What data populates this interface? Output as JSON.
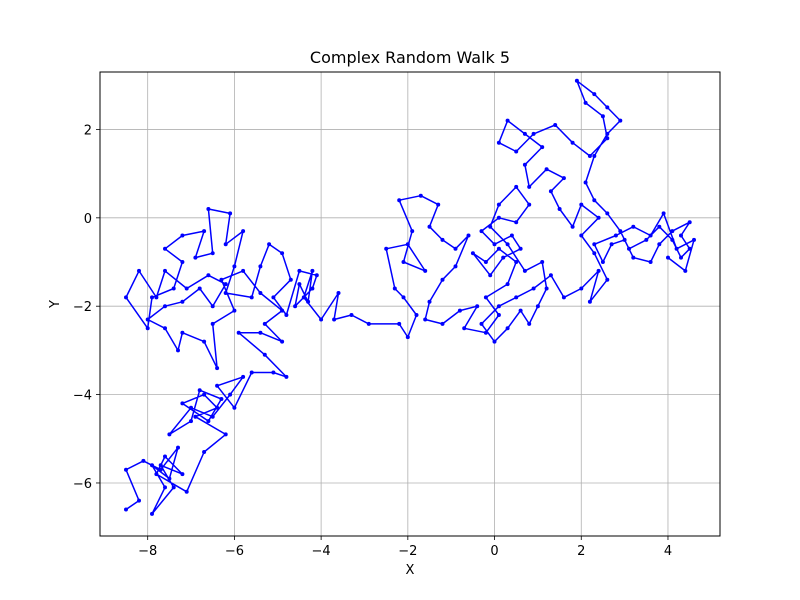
{
  "chart_data": {
    "type": "line",
    "title": "Complex Random Walk 5",
    "xlabel": "X",
    "ylabel": "Y",
    "xlim": [
      -9.1,
      5.2
    ],
    "ylim": [
      -7.2,
      3.3
    ],
    "xticks": [
      -8,
      -6,
      -4,
      -2,
      0,
      2,
      4
    ],
    "yticks": [
      -6,
      -4,
      -2,
      0,
      2
    ],
    "grid": true,
    "series": [
      {
        "color": "#0000ff",
        "marker": "circle",
        "points": [
          [
            -8.5,
            -6.6
          ],
          [
            -8.2,
            -6.4
          ],
          [
            -8.5,
            -5.7
          ],
          [
            -8.1,
            -5.5
          ],
          [
            -7.7,
            -5.7
          ],
          [
            -7.3,
            -5.2
          ],
          [
            -7.5,
            -5.9
          ],
          [
            -7.9,
            -5.6
          ],
          [
            -7.6,
            -6.1
          ],
          [
            -7.9,
            -6.7
          ],
          [
            -7.4,
            -6.1
          ],
          [
            -7.7,
            -5.6
          ],
          [
            -7.2,
            -5.8
          ],
          [
            -7.6,
            -5.4
          ],
          [
            -7.8,
            -5.8
          ],
          [
            -7.1,
            -6.2
          ],
          [
            -6.7,
            -5.3
          ],
          [
            -6.2,
            -4.9
          ],
          [
            -6.9,
            -4.5
          ],
          [
            -6.4,
            -4.3
          ],
          [
            -6.7,
            -4.0
          ],
          [
            -7.2,
            -4.2
          ],
          [
            -6.6,
            -4.6
          ],
          [
            -6.3,
            -4.1
          ],
          [
            -6.8,
            -3.9
          ],
          [
            -7.0,
            -4.6
          ],
          [
            -7.5,
            -4.9
          ],
          [
            -7.0,
            -4.3
          ],
          [
            -6.5,
            -4.5
          ],
          [
            -6.1,
            -4.0
          ],
          [
            -5.8,
            -3.6
          ],
          [
            -6.4,
            -3.8
          ],
          [
            -6.0,
            -4.3
          ],
          [
            -5.6,
            -3.5
          ],
          [
            -5.1,
            -3.5
          ],
          [
            -4.8,
            -3.6
          ],
          [
            -5.3,
            -3.1
          ],
          [
            -5.9,
            -2.6
          ],
          [
            -5.4,
            -2.6
          ],
          [
            -4.9,
            -2.8
          ],
          [
            -5.3,
            -2.4
          ],
          [
            -4.9,
            -2.1
          ],
          [
            -5.4,
            -1.7
          ],
          [
            -5.8,
            -1.2
          ],
          [
            -6.3,
            -1.4
          ],
          [
            -6.0,
            -2.1
          ],
          [
            -6.5,
            -2.4
          ],
          [
            -6.4,
            -3.4
          ],
          [
            -6.7,
            -2.8
          ],
          [
            -7.2,
            -2.6
          ],
          [
            -7.3,
            -3.0
          ],
          [
            -7.6,
            -2.5
          ],
          [
            -8.0,
            -2.3
          ],
          [
            -7.6,
            -2.0
          ],
          [
            -7.2,
            -1.9
          ],
          [
            -6.8,
            -1.6
          ],
          [
            -6.5,
            -2.0
          ],
          [
            -6.2,
            -1.5
          ],
          [
            -6.6,
            -1.3
          ],
          [
            -7.1,
            -1.6
          ],
          [
            -7.6,
            -1.2
          ],
          [
            -7.8,
            -1.8
          ],
          [
            -8.2,
            -1.2
          ],
          [
            -8.5,
            -1.8
          ],
          [
            -8.0,
            -2.5
          ],
          [
            -7.9,
            -1.8
          ],
          [
            -7.4,
            -1.6
          ],
          [
            -7.2,
            -1.0
          ],
          [
            -7.6,
            -0.7
          ],
          [
            -7.2,
            -0.4
          ],
          [
            -6.7,
            -0.3
          ],
          [
            -6.9,
            -0.9
          ],
          [
            -6.5,
            -0.8
          ],
          [
            -6.6,
            0.2
          ],
          [
            -6.1,
            0.1
          ],
          [
            -6.2,
            -0.6
          ],
          [
            -5.8,
            -0.3
          ],
          [
            -6.0,
            -1.1
          ],
          [
            -6.2,
            -1.7
          ],
          [
            -5.6,
            -1.8
          ],
          [
            -5.4,
            -1.1
          ],
          [
            -5.2,
            -0.6
          ],
          [
            -4.9,
            -0.8
          ],
          [
            -4.7,
            -1.4
          ],
          [
            -5.1,
            -1.8
          ],
          [
            -4.8,
            -2.2
          ],
          [
            -4.5,
            -1.2
          ],
          [
            -4.1,
            -1.3
          ],
          [
            -4.2,
            -1.6
          ],
          [
            -4.6,
            -2.0
          ],
          [
            -4.5,
            -1.5
          ],
          [
            -4.3,
            -1.9
          ],
          [
            -4.2,
            -1.2
          ],
          [
            -4.4,
            -1.8
          ],
          [
            -4.0,
            -2.3
          ],
          [
            -3.6,
            -1.7
          ],
          [
            -3.7,
            -2.3
          ],
          [
            -3.3,
            -2.2
          ],
          [
            -2.9,
            -2.4
          ],
          [
            -2.2,
            -2.4
          ],
          [
            -2.0,
            -2.7
          ],
          [
            -1.8,
            -2.2
          ],
          [
            -2.1,
            -1.8
          ],
          [
            -2.3,
            -1.6
          ],
          [
            -2.5,
            -0.7
          ],
          [
            -2.0,
            -0.6
          ],
          [
            -1.6,
            -1.2
          ],
          [
            -2.1,
            -1.0
          ],
          [
            -1.9,
            -0.3
          ],
          [
            -2.2,
            0.4
          ],
          [
            -1.7,
            0.5
          ],
          [
            -1.3,
            0.3
          ],
          [
            -1.5,
            -0.2
          ],
          [
            -1.2,
            -0.5
          ],
          [
            -0.9,
            -0.7
          ],
          [
            -0.6,
            -0.4
          ],
          [
            -0.9,
            -1.1
          ],
          [
            -1.2,
            -1.4
          ],
          [
            -1.5,
            -1.9
          ],
          [
            -1.6,
            -2.3
          ],
          [
            -1.2,
            -2.4
          ],
          [
            -0.8,
            -2.1
          ],
          [
            -0.4,
            -2.0
          ],
          [
            -0.7,
            -2.5
          ],
          [
            -0.2,
            -2.6
          ],
          [
            0.1,
            -2.2
          ],
          [
            -0.2,
            -1.8
          ],
          [
            0.3,
            -1.5
          ],
          [
            0.5,
            -1.0
          ],
          [
            0.1,
            -0.7
          ],
          [
            -0.2,
            -1.0
          ],
          [
            -0.5,
            -0.8
          ],
          [
            -0.1,
            -1.3
          ],
          [
            0.2,
            -0.9
          ],
          [
            0.6,
            -0.7
          ],
          [
            0.4,
            -0.4
          ],
          [
            0.0,
            -0.6
          ],
          [
            -0.3,
            -0.3
          ],
          [
            0.1,
            0.0
          ],
          [
            0.5,
            -0.1
          ],
          [
            0.8,
            0.3
          ],
          [
            0.5,
            0.7
          ],
          [
            0.1,
            0.3
          ],
          [
            -0.1,
            -0.2
          ],
          [
            0.3,
            -0.6
          ],
          [
            0.7,
            -1.2
          ],
          [
            1.1,
            -1.0
          ],
          [
            1.2,
            -1.6
          ],
          [
            1.0,
            -2.0
          ],
          [
            0.8,
            -2.4
          ],
          [
            0.6,
            -2.1
          ],
          [
            0.3,
            -2.5
          ],
          [
            0.0,
            -2.8
          ],
          [
            -0.3,
            -2.4
          ],
          [
            0.1,
            -2.0
          ],
          [
            0.5,
            -1.8
          ],
          [
            0.9,
            -1.6
          ],
          [
            1.3,
            -1.3
          ],
          [
            1.6,
            -1.8
          ],
          [
            2.0,
            -1.6
          ],
          [
            2.4,
            -1.2
          ],
          [
            2.2,
            -1.9
          ],
          [
            2.6,
            -1.4
          ],
          [
            2.3,
            -0.8
          ],
          [
            2.0,
            -0.4
          ],
          [
            2.4,
            0.0
          ],
          [
            2.0,
            0.3
          ],
          [
            1.8,
            -0.2
          ],
          [
            1.5,
            0.2
          ],
          [
            1.3,
            0.6
          ],
          [
            1.6,
            0.9
          ],
          [
            1.2,
            1.1
          ],
          [
            0.8,
            0.7
          ],
          [
            0.7,
            1.2
          ],
          [
            1.1,
            1.6
          ],
          [
            0.7,
            1.9
          ],
          [
            0.3,
            2.2
          ],
          [
            0.1,
            1.7
          ],
          [
            0.5,
            1.5
          ],
          [
            0.9,
            1.9
          ],
          [
            1.4,
            2.1
          ],
          [
            1.8,
            1.7
          ],
          [
            2.2,
            1.4
          ],
          [
            2.6,
            1.8
          ],
          [
            2.5,
            2.3
          ],
          [
            2.1,
            2.6
          ],
          [
            1.9,
            3.1
          ],
          [
            2.3,
            2.8
          ],
          [
            2.6,
            2.5
          ],
          [
            2.9,
            2.2
          ],
          [
            2.6,
            1.9
          ],
          [
            2.3,
            1.4
          ],
          [
            2.1,
            0.8
          ],
          [
            2.3,
            0.4
          ],
          [
            2.6,
            0.1
          ],
          [
            2.9,
            -0.3
          ],
          [
            3.1,
            -0.7
          ],
          [
            3.5,
            -0.5
          ],
          [
            3.8,
            -0.2
          ],
          [
            4.1,
            -0.5
          ],
          [
            4.3,
            -0.9
          ],
          [
            4.5,
            -0.7
          ],
          [
            4.3,
            -0.4
          ],
          [
            4.5,
            -0.1
          ],
          [
            4.1,
            -0.3
          ],
          [
            3.8,
            -0.6
          ],
          [
            3.6,
            -1.0
          ],
          [
            3.2,
            -0.9
          ],
          [
            3.0,
            -0.5
          ],
          [
            2.7,
            -0.6
          ],
          [
            2.5,
            -1.0
          ],
          [
            2.3,
            -0.6
          ],
          [
            2.8,
            -0.4
          ],
          [
            3.2,
            -0.2
          ],
          [
            3.6,
            -0.4
          ],
          [
            3.9,
            0.1
          ],
          [
            4.2,
            -0.7
          ],
          [
            4.6,
            -0.5
          ],
          [
            4.4,
            -1.2
          ],
          [
            4.0,
            -0.9
          ]
        ]
      }
    ]
  }
}
